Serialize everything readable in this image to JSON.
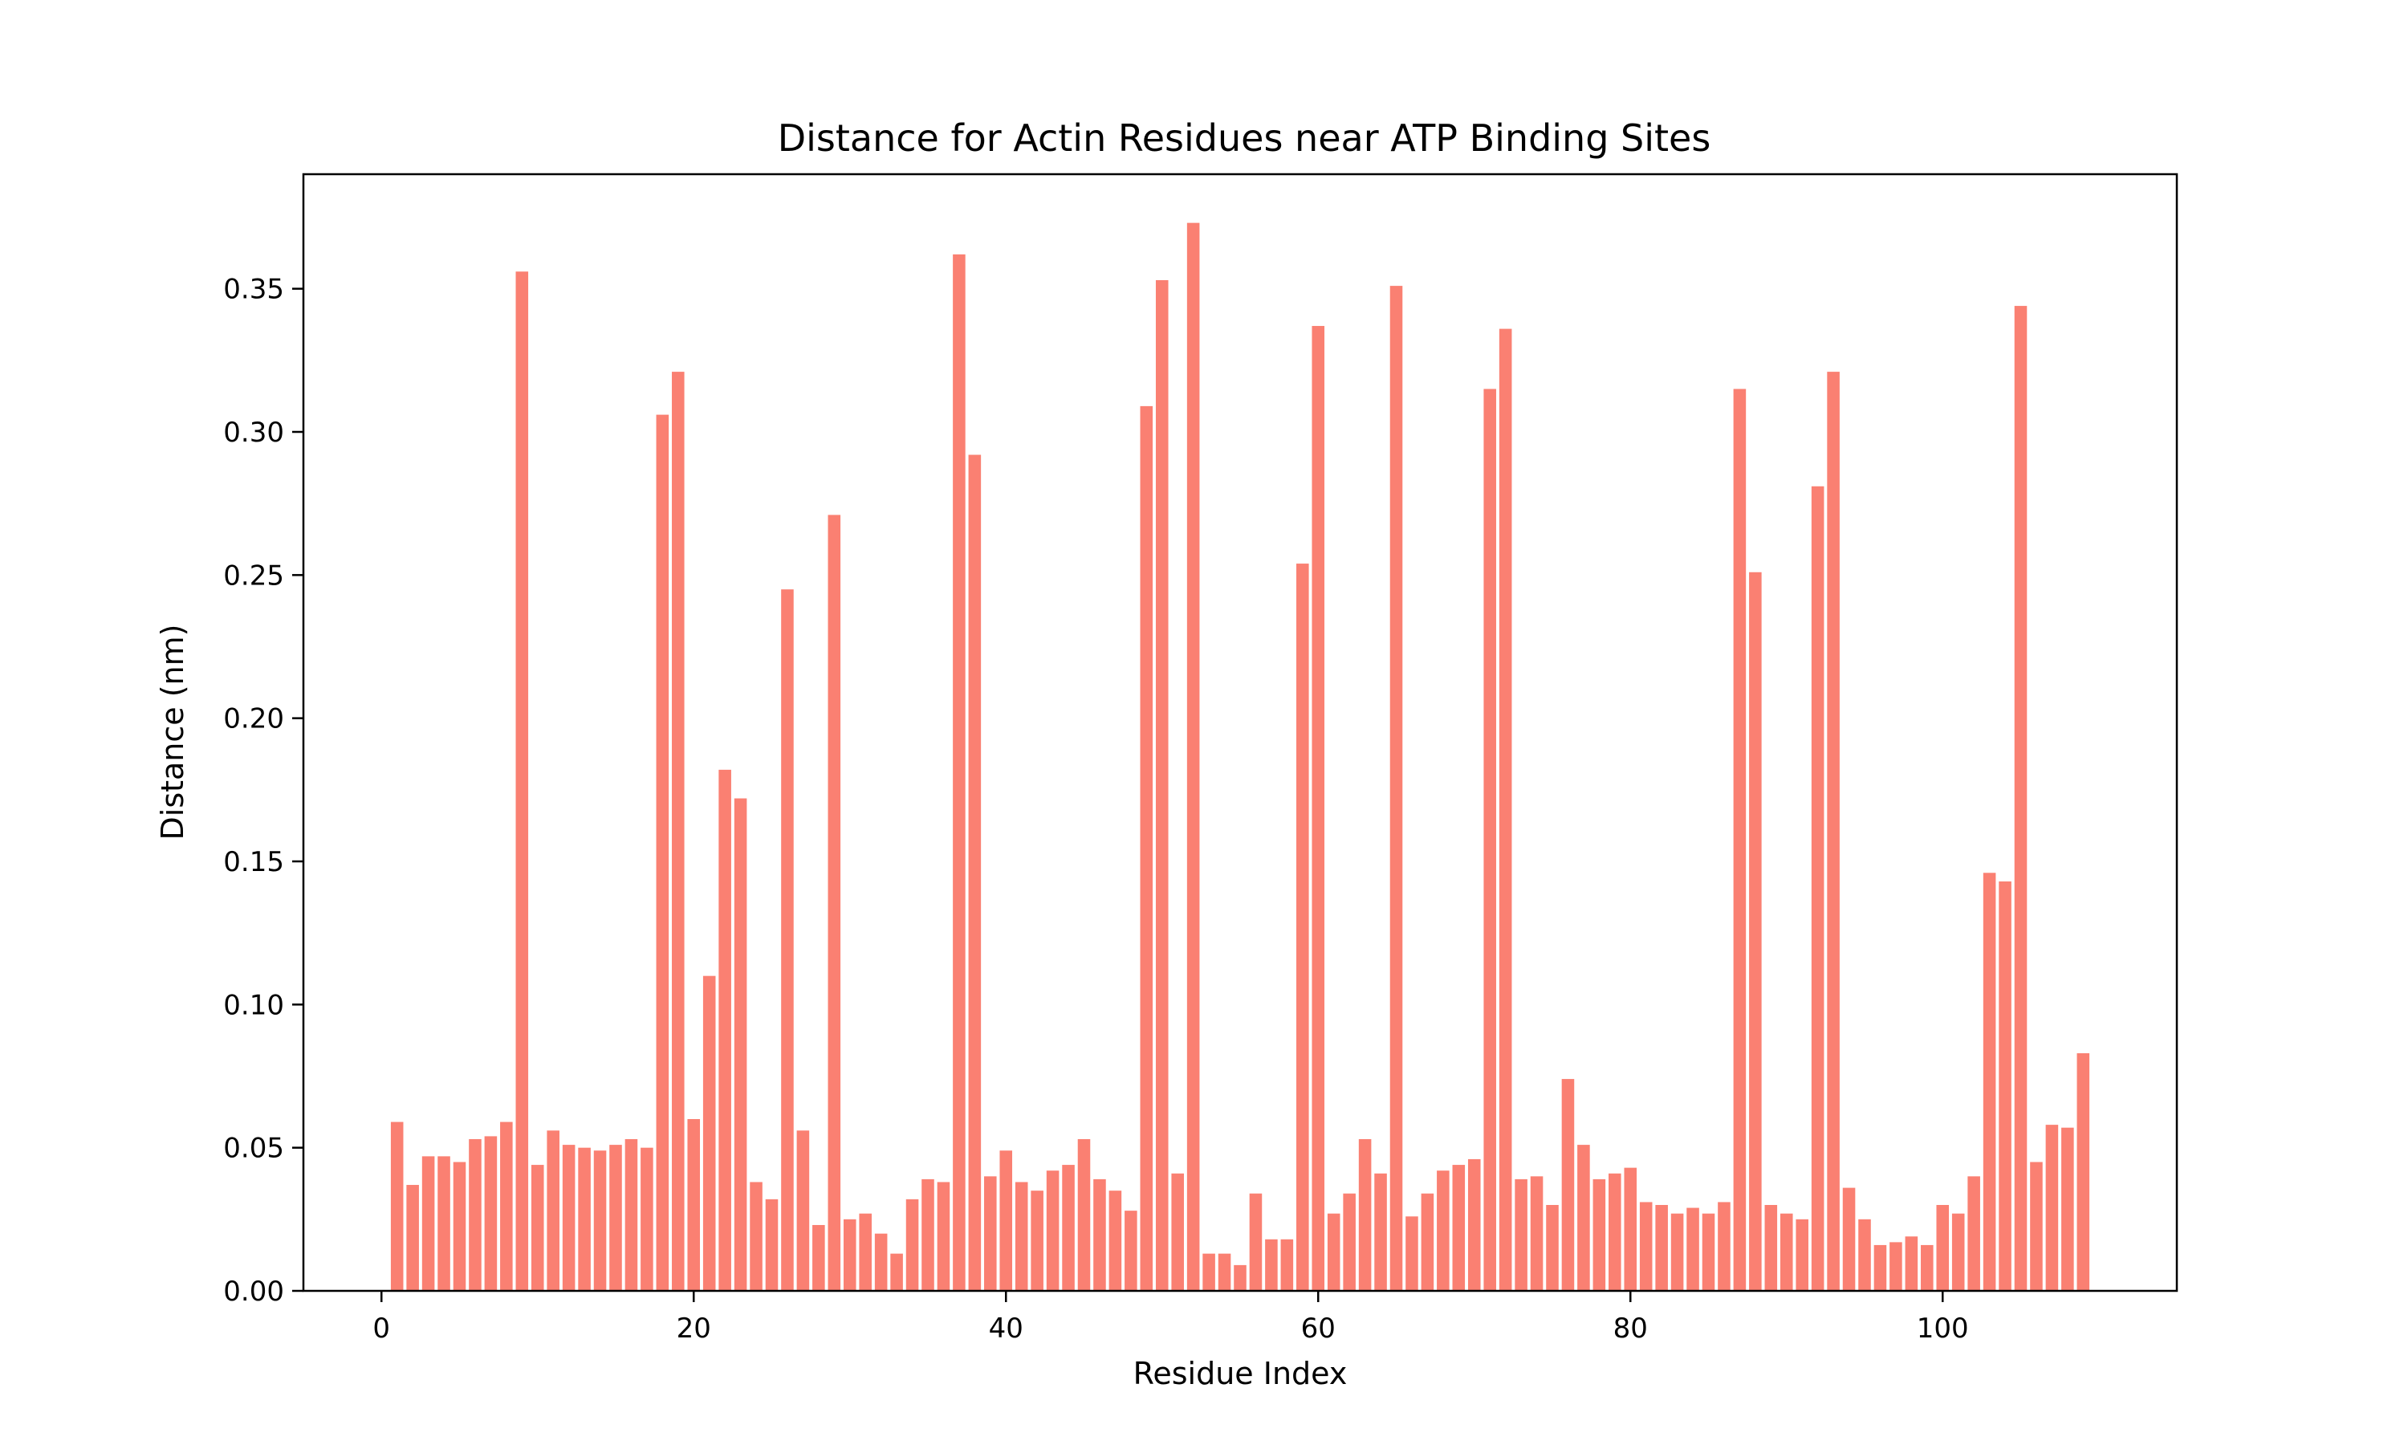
{
  "chart_data": {
    "type": "bar",
    "title": "Distance for Actin Residues near ATP Binding Sites",
    "xlabel": "Residue Index",
    "ylabel": "Distance (nm)",
    "xlim": [
      -5,
      115
    ],
    "ylim": [
      0,
      0.39
    ],
    "xticks": [
      0,
      20,
      40,
      60,
      80,
      100
    ],
    "xtick_labels": [
      "0",
      "20",
      "40",
      "60",
      "80",
      "100"
    ],
    "yticks": [
      0.0,
      0.05,
      0.1,
      0.15,
      0.2,
      0.25,
      0.3,
      0.35
    ],
    "ytick_labels": [
      "0.00",
      "0.05",
      "0.10",
      "0.15",
      "0.20",
      "0.25",
      "0.30",
      "0.35"
    ],
    "bar_color": "#fa8072",
    "grid": false,
    "legend": "none",
    "x": [
      1,
      2,
      3,
      4,
      5,
      6,
      7,
      8,
      9,
      10,
      11,
      12,
      13,
      14,
      15,
      16,
      17,
      18,
      19,
      20,
      21,
      22,
      23,
      24,
      25,
      26,
      27,
      28,
      29,
      30,
      31,
      32,
      33,
      34,
      35,
      36,
      37,
      38,
      39,
      40,
      41,
      42,
      43,
      44,
      45,
      46,
      47,
      48,
      49,
      50,
      51,
      52,
      53,
      54,
      55,
      56,
      57,
      58,
      59,
      60,
      61,
      62,
      63,
      64,
      65,
      66,
      67,
      68,
      69,
      70,
      71,
      72,
      73,
      74,
      75,
      76,
      77,
      78,
      79,
      80,
      81,
      82,
      83,
      84,
      85,
      86,
      87,
      88,
      89,
      90,
      91,
      92,
      93,
      94,
      95,
      96,
      97,
      98,
      99,
      100,
      101,
      102,
      103,
      104,
      105,
      106,
      107,
      108,
      109
    ],
    "values": [
      0.059,
      0.037,
      0.047,
      0.047,
      0.045,
      0.053,
      0.054,
      0.059,
      0.356,
      0.044,
      0.056,
      0.051,
      0.05,
      0.049,
      0.051,
      0.053,
      0.05,
      0.306,
      0.321,
      0.06,
      0.11,
      0.182,
      0.172,
      0.038,
      0.032,
      0.245,
      0.056,
      0.023,
      0.271,
      0.025,
      0.027,
      0.02,
      0.013,
      0.032,
      0.039,
      0.038,
      0.362,
      0.292,
      0.04,
      0.049,
      0.038,
      0.035,
      0.042,
      0.044,
      0.053,
      0.039,
      0.035,
      0.028,
      0.309,
      0.353,
      0.041,
      0.373,
      0.013,
      0.013,
      0.009,
      0.034,
      0.018,
      0.018,
      0.254,
      0.337,
      0.027,
      0.034,
      0.053,
      0.041,
      0.351,
      0.026,
      0.034,
      0.042,
      0.044,
      0.046,
      0.315,
      0.336,
      0.039,
      0.04,
      0.03,
      0.074,
      0.051,
      0.039,
      0.041,
      0.043,
      0.031,
      0.03,
      0.027,
      0.029,
      0.027,
      0.031,
      0.315,
      0.251,
      0.03,
      0.027,
      0.025,
      0.281,
      0.321,
      0.036,
      0.025,
      0.016,
      0.017,
      0.019,
      0.016,
      0.03,
      0.027,
      0.04,
      0.146,
      0.143,
      0.344,
      0.045,
      0.058,
      0.057,
      0.083
    ]
  }
}
